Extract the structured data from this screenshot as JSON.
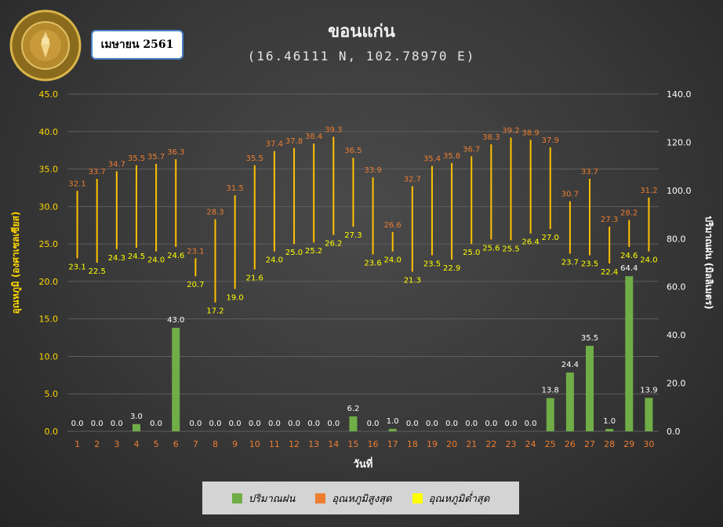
{
  "logo_text": "กรมอุตุนิยมวิทยา METEOROLOGICAL DEPARTMENT",
  "month_label": "เมษายน 2561",
  "title": "ขอนแก่น",
  "subtitle": "(16.46111 N, 102.78970 E)",
  "legend": {
    "rain": "ปริมาณฝน",
    "max": "อุณหภูมิสูงสุด",
    "min": "อุณหภูมิต่ำสุด"
  },
  "colors": {
    "rain": "#70ad47",
    "max": "#ed7d31",
    "min": "#ffc000",
    "min_legend": "#ffff00",
    "axis_text_left": "#ffd700",
    "day_text": "#ed7d31"
  },
  "chart_data": {
    "type": "bar",
    "x": [
      1,
      2,
      3,
      4,
      5,
      6,
      7,
      8,
      9,
      10,
      11,
      12,
      13,
      14,
      15,
      16,
      17,
      18,
      19,
      20,
      21,
      22,
      23,
      24,
      25,
      26,
      27,
      28,
      29,
      30
    ],
    "xlabel": "วันที่",
    "ylabel": "อุณหภูมิ (องศาเซลเซียส)",
    "y2label": "ปริมาณฝน (มิลลิเมตร)",
    "ylim": [
      0,
      45
    ],
    "y2lim": [
      0,
      140
    ],
    "yticks": [
      "0.0",
      "5.0",
      "10.0",
      "15.0",
      "20.0",
      "25.0",
      "30.0",
      "35.0",
      "40.0",
      "45.0"
    ],
    "y2ticks": [
      "0.0",
      "20.0",
      "40.0",
      "60.0",
      "80.0",
      "100.0",
      "120.0",
      "140.0"
    ],
    "series": [
      {
        "name": "ปริมาณฝน",
        "axis": "right",
        "kind": "bar",
        "values": [
          0.0,
          0.0,
          0.0,
          3.0,
          0.0,
          43.0,
          0.0,
          0.0,
          0.0,
          0.0,
          0.0,
          0.0,
          0.0,
          0.0,
          6.2,
          0.0,
          1.0,
          0.0,
          0.0,
          0.0,
          0.0,
          0.0,
          0.0,
          0.0,
          13.8,
          24.4,
          35.5,
          1.0,
          64.4,
          13.9
        ],
        "labels": [
          "0.0",
          "0.0",
          "0.0",
          "3.0",
          "0.0",
          "43.0",
          "0.0",
          "0.0",
          "0.0",
          "0.0",
          "0.0",
          "0.0",
          "0.0",
          "0.0",
          "6.2",
          "0.0",
          "1.0",
          "0.0",
          "0.0",
          "0.0",
          "0.0",
          "0.0",
          "0.0",
          "0.0",
          "13.8",
          "24.4",
          "35.5",
          "1.0",
          "64.4",
          "13.9"
        ]
      },
      {
        "name": "อุณหภูมิสูงสุด",
        "axis": "left",
        "kind": "hilo-high",
        "values": [
          32.1,
          33.7,
          34.7,
          35.5,
          35.7,
          36.3,
          23.1,
          28.3,
          31.5,
          35.5,
          37.4,
          37.8,
          38.4,
          39.3,
          36.5,
          33.9,
          26.6,
          32.7,
          35.4,
          35.8,
          36.7,
          38.3,
          39.2,
          38.9,
          37.9,
          30.7,
          33.7,
          27.3,
          28.2,
          31.2
        ],
        "labels": [
          "32.1",
          "33.7",
          "34.7",
          "35.5",
          "35.7",
          "36.3",
          "23.1",
          "28.3",
          "31.5",
          "35.5",
          "37.4",
          "37.8",
          "38.4",
          "39.3",
          "36.5",
          "33.9",
          "26.6",
          "32.7",
          "35.4",
          "35.8",
          "36.7",
          "38.3",
          "39.2",
          "38.9",
          "37.9",
          "30.7",
          "33.7",
          "27.3",
          "28.2",
          "31.2"
        ]
      },
      {
        "name": "อุณหภูมิต่ำสุด",
        "axis": "left",
        "kind": "hilo-low",
        "values": [
          23.1,
          22.5,
          24.3,
          24.5,
          24.0,
          24.6,
          20.7,
          17.2,
          19.0,
          21.6,
          24.0,
          25.0,
          25.2,
          26.2,
          27.3,
          23.6,
          24.0,
          21.3,
          23.5,
          22.9,
          25.0,
          25.6,
          25.5,
          26.4,
          27.0,
          23.7,
          23.5,
          22.4,
          24.6,
          24.0
        ],
        "labels": [
          "23.1",
          "22.5",
          "24.3",
          "24.5",
          "24.0",
          "24.6",
          "20.7",
          "17.2",
          "19.0",
          "21.6",
          "24.0",
          "25.0",
          "25.2",
          "26.2",
          "27.3",
          "23.6",
          "24.0",
          "21.3",
          "23.5",
          "22.9",
          "25.0",
          "25.6",
          "25.5",
          "26.4",
          "27.0",
          "23.7",
          "23.5",
          "22.4",
          "24.6",
          "24.0"
        ]
      }
    ]
  }
}
